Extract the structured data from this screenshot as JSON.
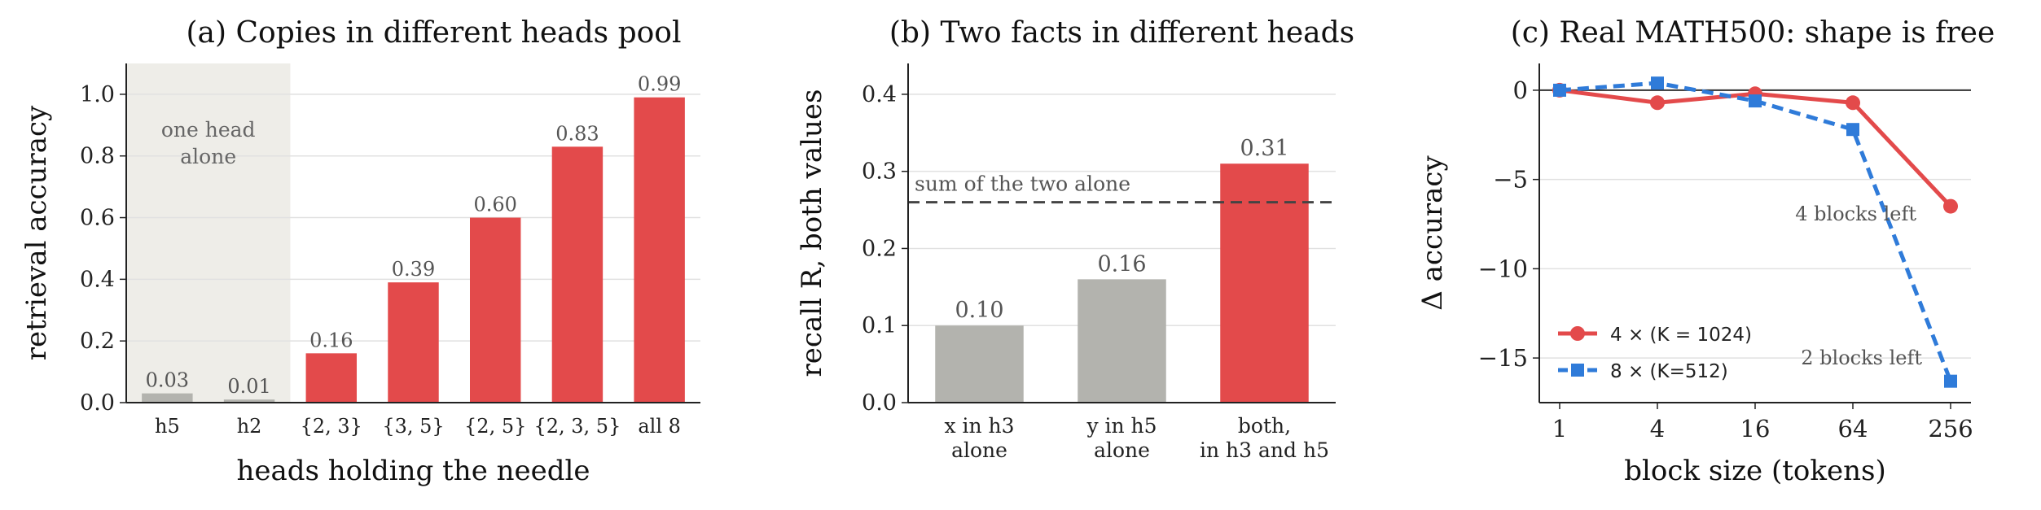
{
  "chart_data": [
    {
      "type": "bar",
      "title": "(a) Copies in different heads pool",
      "xlabel": "heads holding the needle",
      "ylabel": "retrieval accuracy",
      "ylim": [
        0,
        1.1
      ],
      "yticks": [
        "0.0",
        "0.2",
        "0.4",
        "0.6",
        "0.8",
        "1.0"
      ],
      "categories": [
        "h5",
        "h2",
        "{2, 3}",
        "{3, 5}",
        "{2, 5}",
        "{2, 3, 5}",
        "all 8"
      ],
      "values": [
        0.03,
        0.01,
        0.16,
        0.39,
        0.6,
        0.83,
        0.99
      ],
      "data_labels": [
        "0.03",
        "0.01",
        "0.16",
        "0.39",
        "0.60",
        "0.83",
        "0.99"
      ],
      "colors": [
        "#b3b3ae",
        "#b3b3ae",
        "#e34a4b",
        "#e34a4b",
        "#e34a4b",
        "#e34a4b",
        "#e34a4b"
      ],
      "shaded_region": {
        "label": "one head alone",
        "color": "#eeede8"
      },
      "grid": "horizontal"
    },
    {
      "type": "bar",
      "title": "(b) Two facts in different heads",
      "xlabel": "",
      "ylabel": "recall R, both values",
      "ylim": [
        0,
        0.44
      ],
      "yticks": [
        "0.0",
        "0.1",
        "0.2",
        "0.3",
        "0.4"
      ],
      "categories": [
        "x in h3\nalone",
        "y in h5\nalone",
        "both,\nin h3 and h5"
      ],
      "values": [
        0.1,
        0.16,
        0.31
      ],
      "data_labels": [
        "0.10",
        "0.16",
        "0.31"
      ],
      "colors": [
        "#b3b3ae",
        "#b3b3ae",
        "#e34a4b"
      ],
      "reference_line": {
        "value": 0.26,
        "label": "sum of the two alone",
        "color": "#444444"
      },
      "grid": "horizontal"
    },
    {
      "type": "line",
      "title": "(c) Real MATH500: shape is free",
      "xlabel": "block size (tokens)",
      "ylabel": "Δ accuracy",
      "x": [
        1,
        4,
        16,
        64,
        256
      ],
      "xticks": [
        "1",
        "4",
        "16",
        "64",
        "256"
      ],
      "xscale": "log",
      "ylim": [
        -17.5,
        1.5
      ],
      "yticks": [
        "0",
        "−5",
        "−10",
        "−15"
      ],
      "ytick_values": [
        0,
        -5,
        -10,
        -15
      ],
      "series": [
        {
          "name": "4 ×  (K = 1024)",
          "values": [
            0,
            -0.7,
            -0.2,
            -0.7,
            -6.5
          ],
          "color": "#e34a4b",
          "marker": "circle",
          "style": "solid"
        },
        {
          "name": "8 ×  (K=512)",
          "values": [
            0,
            0.4,
            -0.6,
            -2.2,
            -16.3
          ],
          "color": "#2f7bd9",
          "marker": "square",
          "style": "dashed"
        }
      ],
      "annotations": [
        "4 blocks left",
        "2 blocks left"
      ],
      "legend": "bottom-left",
      "grid": "horizontal"
    }
  ]
}
